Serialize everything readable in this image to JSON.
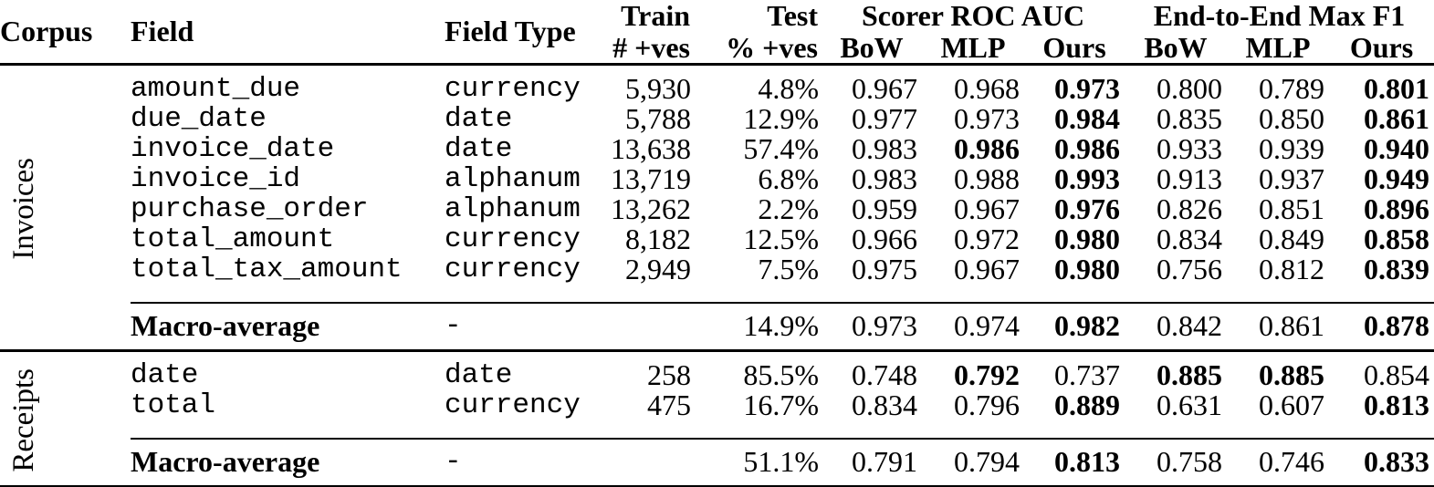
{
  "table": {
    "headers": {
      "corpus": "Corpus",
      "field": "Field",
      "field_type": "Field Type",
      "train_line1": "Train",
      "train_line2": "# +ves",
      "test_line1": "Test",
      "test_line2": "% +ves",
      "group_roc": "Scorer ROC AUC",
      "group_f1": "End-to-End Max F1",
      "sub": [
        "BoW",
        "MLP",
        "Ours"
      ]
    },
    "sections": [
      {
        "corpus": "Invoices",
        "rows": [
          {
            "field": "amount_due",
            "type": "currency",
            "train": "5,930",
            "test": "4.8%",
            "values": [
              {
                "v": "0.967"
              },
              {
                "v": "0.968"
              },
              {
                "v": "0.973",
                "b": true
              },
              {
                "v": "0.800"
              },
              {
                "v": "0.789"
              },
              {
                "v": "0.801",
                "b": true
              }
            ]
          },
          {
            "field": "due_date",
            "type": "date",
            "train": "5,788",
            "test": "12.9%",
            "values": [
              {
                "v": "0.977"
              },
              {
                "v": "0.973"
              },
              {
                "v": "0.984",
                "b": true
              },
              {
                "v": "0.835"
              },
              {
                "v": "0.850"
              },
              {
                "v": "0.861",
                "b": true
              }
            ]
          },
          {
            "field": "invoice_date",
            "type": "date",
            "train": "13,638",
            "test": "57.4%",
            "values": [
              {
                "v": "0.983"
              },
              {
                "v": "0.986",
                "b": true
              },
              {
                "v": "0.986",
                "b": true
              },
              {
                "v": "0.933"
              },
              {
                "v": "0.939"
              },
              {
                "v": "0.940",
                "b": true
              }
            ]
          },
          {
            "field": "invoice_id",
            "type": "alphanum",
            "train": "13,719",
            "test": "6.8%",
            "values": [
              {
                "v": "0.983"
              },
              {
                "v": "0.988"
              },
              {
                "v": "0.993",
                "b": true
              },
              {
                "v": "0.913"
              },
              {
                "v": "0.937"
              },
              {
                "v": "0.949",
                "b": true
              }
            ]
          },
          {
            "field": "purchase_order",
            "type": "alphanum",
            "train": "13,262",
            "test": "2.2%",
            "values": [
              {
                "v": "0.959"
              },
              {
                "v": "0.967"
              },
              {
                "v": "0.976",
                "b": true
              },
              {
                "v": "0.826"
              },
              {
                "v": "0.851"
              },
              {
                "v": "0.896",
                "b": true
              }
            ]
          },
          {
            "field": "total_amount",
            "type": "currency",
            "train": "8,182",
            "test": "12.5%",
            "values": [
              {
                "v": "0.966"
              },
              {
                "v": "0.972"
              },
              {
                "v": "0.980",
                "b": true
              },
              {
                "v": "0.834"
              },
              {
                "v": "0.849"
              },
              {
                "v": "0.858",
                "b": true
              }
            ]
          },
          {
            "field": "total_tax_amount",
            "type": "currency",
            "train": "2,949",
            "test": "7.5%",
            "values": [
              {
                "v": "0.975"
              },
              {
                "v": "0.967"
              },
              {
                "v": "0.980",
                "b": true
              },
              {
                "v": "0.756"
              },
              {
                "v": "0.812"
              },
              {
                "v": "0.839",
                "b": true
              }
            ]
          }
        ],
        "macro": {
          "label": "Macro-average",
          "type": "-",
          "train": "",
          "test": "14.9%",
          "values": [
            {
              "v": "0.973"
            },
            {
              "v": "0.974"
            },
            {
              "v": "0.982",
              "b": true
            },
            {
              "v": "0.842"
            },
            {
              "v": "0.861"
            },
            {
              "v": "0.878",
              "b": true
            }
          ]
        }
      },
      {
        "corpus": "Receipts",
        "rows": [
          {
            "field": "date",
            "type": "date",
            "train": "258",
            "test": "85.5%",
            "values": [
              {
                "v": "0.748"
              },
              {
                "v": "0.792",
                "b": true
              },
              {
                "v": "0.737"
              },
              {
                "v": "0.885",
                "b": true
              },
              {
                "v": "0.885",
                "b": true
              },
              {
                "v": "0.854"
              }
            ]
          },
          {
            "field": "total",
            "type": "currency",
            "train": "475",
            "test": "16.7%",
            "values": [
              {
                "v": "0.834"
              },
              {
                "v": "0.796"
              },
              {
                "v": "0.889",
                "b": true
              },
              {
                "v": "0.631"
              },
              {
                "v": "0.607"
              },
              {
                "v": "0.813",
                "b": true
              }
            ]
          }
        ],
        "macro": {
          "label": "Macro-average",
          "type": "-",
          "train": "",
          "test": "51.1%",
          "values": [
            {
              "v": "0.791"
            },
            {
              "v": "0.794"
            },
            {
              "v": "0.813",
              "b": true
            },
            {
              "v": "0.758"
            },
            {
              "v": "0.746"
            },
            {
              "v": "0.833",
              "b": true
            }
          ]
        }
      }
    ]
  }
}
